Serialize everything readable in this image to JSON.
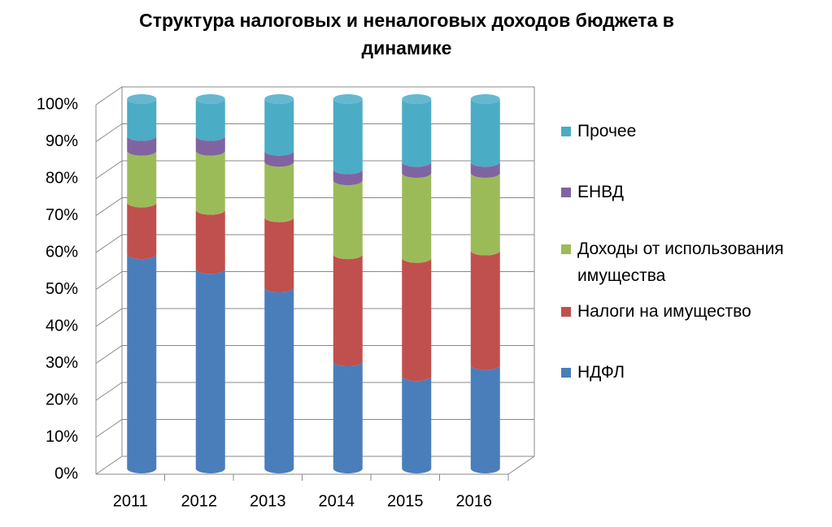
{
  "chart_data": {
    "type": "bar",
    "stacked": true,
    "title": "Структура налоговых и неналоговых доходов бюджета в динамике",
    "categories": [
      "2011",
      "2012",
      "2013",
      "2014",
      "2015",
      "2016"
    ],
    "series": [
      {
        "name": "НДФЛ",
        "color": "#4a7ebb",
        "values": [
          58,
          54,
          49,
          29,
          25,
          28
        ]
      },
      {
        "name": "Налоги на имущество",
        "color": "#c0504d",
        "values": [
          14,
          16,
          19,
          29,
          32,
          31
        ]
      },
      {
        "name": "Доходы от использования имущества",
        "color": "#9bbb59",
        "values": [
          14,
          16,
          15,
          20,
          23,
          21
        ]
      },
      {
        "name": "ЕНВД",
        "color": "#8064a2",
        "values": [
          4,
          4,
          3,
          3,
          3,
          3
        ]
      },
      {
        "name": "Прочее",
        "color": "#4bacc6",
        "values": [
          10,
          10,
          14,
          19,
          17,
          17
        ]
      }
    ],
    "ylim": [
      0,
      100
    ],
    "yticks": [
      {
        "value": 0,
        "label": "0%"
      },
      {
        "value": 10,
        "label": "10%"
      },
      {
        "value": 20,
        "label": "20%"
      },
      {
        "value": 30,
        "label": "30%"
      },
      {
        "value": 40,
        "label": "40%"
      },
      {
        "value": 50,
        "label": "50%"
      },
      {
        "value": 60,
        "label": "60%"
      },
      {
        "value": 70,
        "label": "70%"
      },
      {
        "value": 80,
        "label": "80%"
      },
      {
        "value": 90,
        "label": "90%"
      },
      {
        "value": 100,
        "label": "100%"
      }
    ],
    "grid": true,
    "legend": "right"
  }
}
